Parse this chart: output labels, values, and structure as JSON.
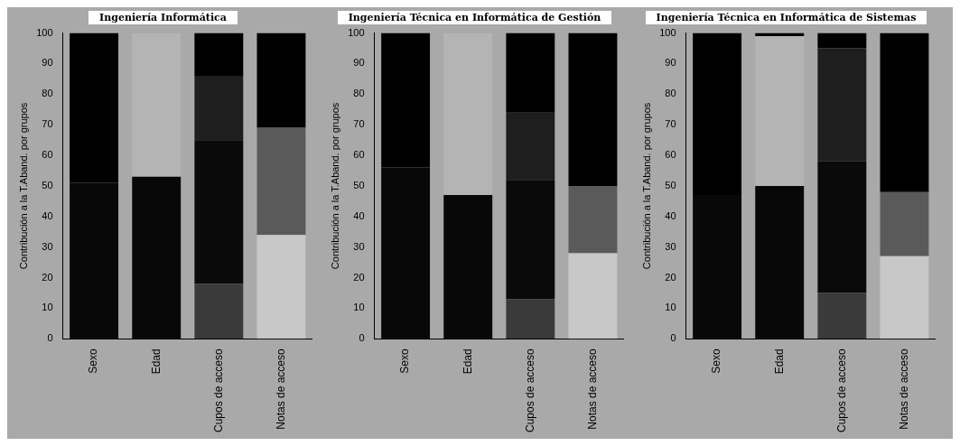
{
  "chart_data": [
    {
      "type": "bar",
      "title": "Ingeniería Informática",
      "ylabel": "Contribución a la T.Aband. por grupos",
      "categories": [
        "Sexo",
        "Edad",
        "Cupos de acceso",
        "Notas de acceso"
      ],
      "stacked": true,
      "ylim": [
        0,
        100
      ],
      "yticks": [
        0,
        10,
        20,
        30,
        40,
        50,
        60,
        70,
        80,
        90,
        100
      ],
      "series": [
        {
          "values": [
            51,
            53,
            18,
            34
          ],
          "colors": [
            "#080808",
            "#080808",
            "#3a3a3a",
            "#c8c8c8"
          ]
        },
        {
          "values": [
            49,
            47,
            47,
            35
          ],
          "colors": [
            "#000000",
            "#b4b4b4",
            "#0a0a0a",
            "#5a5a5a"
          ]
        },
        {
          "values": [
            null,
            null,
            21,
            31
          ],
          "colors": [
            "#000000",
            "#000000",
            "#1e1e1e",
            "#000000"
          ]
        },
        {
          "values": [
            null,
            null,
            14,
            null
          ],
          "colors": [
            "#000000",
            "#000000",
            "#000000",
            "#000000"
          ]
        }
      ]
    },
    {
      "type": "bar",
      "title": "Ingeniería Técnica en Informática de Gestión",
      "ylabel": "Contribución a la T.Aband. por grupos",
      "categories": [
        "Sexo",
        "Edad",
        "Cupos de acceso",
        "Notas de acceso"
      ],
      "stacked": true,
      "ylim": [
        0,
        100
      ],
      "yticks": [
        0,
        10,
        20,
        30,
        40,
        50,
        60,
        70,
        80,
        90,
        100
      ],
      "series": [
        {
          "values": [
            56,
            47,
            13,
            28
          ],
          "colors": [
            "#080808",
            "#080808",
            "#3a3a3a",
            "#c8c8c8"
          ]
        },
        {
          "values": [
            44,
            53,
            39,
            22
          ],
          "colors": [
            "#000000",
            "#b4b4b4",
            "#0a0a0a",
            "#5a5a5a"
          ]
        },
        {
          "values": [
            null,
            null,
            22,
            50
          ],
          "colors": [
            "#000000",
            "#000000",
            "#1e1e1e",
            "#000000"
          ]
        },
        {
          "values": [
            null,
            null,
            26,
            null
          ],
          "colors": [
            "#000000",
            "#000000",
            "#000000",
            "#000000"
          ]
        }
      ]
    },
    {
      "type": "bar",
      "title": "Ingeniería Técnica en Informática de Sistemas",
      "ylabel": "Contribución a la T.Aband. por grupos",
      "categories": [
        "Sexo",
        "Edad",
        "Cupos de acceso",
        "Notas de acceso"
      ],
      "stacked": true,
      "ylim": [
        0,
        100
      ],
      "yticks": [
        0,
        10,
        20,
        30,
        40,
        50,
        60,
        70,
        80,
        90,
        100
      ],
      "series": [
        {
          "values": [
            47,
            50,
            15,
            27
          ],
          "colors": [
            "#080808",
            "#080808",
            "#3a3a3a",
            "#c8c8c8"
          ]
        },
        {
          "values": [
            53,
            49,
            43,
            21
          ],
          "colors": [
            "#000000",
            "#b4b4b4",
            "#0a0a0a",
            "#5a5a5a"
          ]
        },
        {
          "values": [
            null,
            1,
            37,
            52
          ],
          "colors": [
            "#000000",
            "#000000",
            "#1e1e1e",
            "#000000"
          ]
        },
        {
          "values": [
            null,
            null,
            5,
            null
          ],
          "colors": [
            "#000000",
            "#000000",
            "#000000",
            "#000000"
          ]
        }
      ]
    }
  ]
}
